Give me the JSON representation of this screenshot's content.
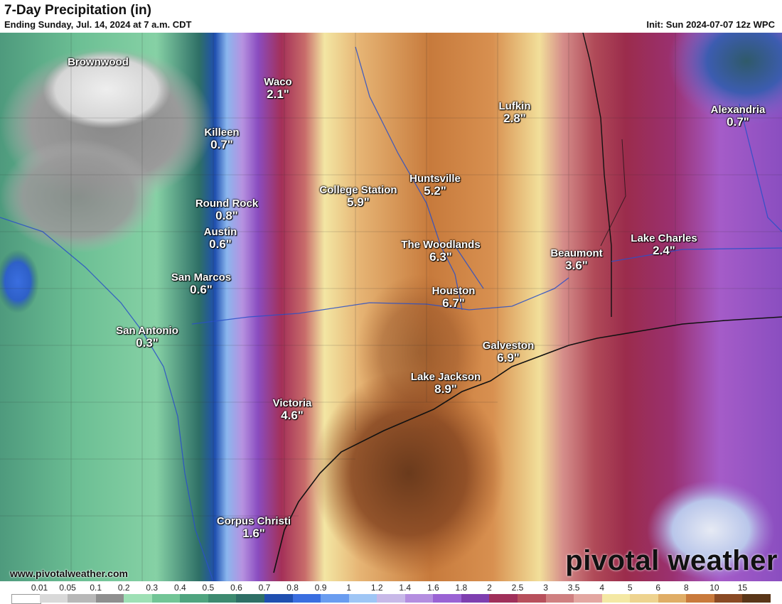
{
  "header": {
    "title": "7-Day Precipitation (in)",
    "subtitle": "Ending Sunday, Jul. 14, 2024 at 7 a.m. CDT",
    "init": "Init: Sun 2024-07-07 12z WPC"
  },
  "cities": [
    {
      "name": "Brownwood",
      "value": ""
    },
    {
      "name": "Waco",
      "value": "2.1\""
    },
    {
      "name": "Killeen",
      "value": "0.7\""
    },
    {
      "name": "Lufkin",
      "value": "2.8\""
    },
    {
      "name": "Alexandria",
      "value": "0.7\""
    },
    {
      "name": "College Station",
      "value": "5.9\""
    },
    {
      "name": "Huntsville",
      "value": "5.2\""
    },
    {
      "name": "Round Rock",
      "value": "0.8\""
    },
    {
      "name": "Austin",
      "value": "0.6\""
    },
    {
      "name": "The Woodlands",
      "value": "6.3\""
    },
    {
      "name": "Lake Charles",
      "value": "2.4\""
    },
    {
      "name": "Beaumont",
      "value": "3.6\""
    },
    {
      "name": "San Marcos",
      "value": "0.6\""
    },
    {
      "name": "Houston",
      "value": "6.7\""
    },
    {
      "name": "San Antonio",
      "value": "0.3\""
    },
    {
      "name": "Galveston",
      "value": "6.9\""
    },
    {
      "name": "Lake Jackson",
      "value": "8.9\""
    },
    {
      "name": "Victoria",
      "value": "4.6\""
    },
    {
      "name": "Corpus Christi",
      "value": "1.6\""
    }
  ],
  "legend": {
    "ticks": [
      "0.01",
      "0.05",
      "0.1",
      "0.2",
      "0.3",
      "0.4",
      "0.5",
      "0.6",
      "0.7",
      "0.8",
      "0.9",
      "1",
      "1.2",
      "1.4",
      "1.6",
      "1.8",
      "2",
      "2.5",
      "3",
      "3.5",
      "4",
      "5",
      "6",
      "8",
      "10",
      "15"
    ],
    "colors": [
      "#ffffff",
      "#d9d9d9",
      "#b8b8b8",
      "#8f8f8f",
      "#9ee0b5",
      "#72c596",
      "#4fa47f",
      "#3d8a70",
      "#2e6f66",
      "#1f4fb0",
      "#3a6ee0",
      "#6a9df0",
      "#9fc6f5",
      "#c8b9e8",
      "#b48ee0",
      "#9a63d4",
      "#7e3fb0",
      "#a0305a",
      "#b8505c",
      "#d08081",
      "#e4a7a2",
      "#f4e8a4",
      "#eed38f",
      "#e0ad66",
      "#c97a3c",
      "#8a4a24",
      "#5a3618"
    ]
  },
  "watermark": {
    "site": "www.pivotalweather.com",
    "brand": "pivotal weather"
  }
}
